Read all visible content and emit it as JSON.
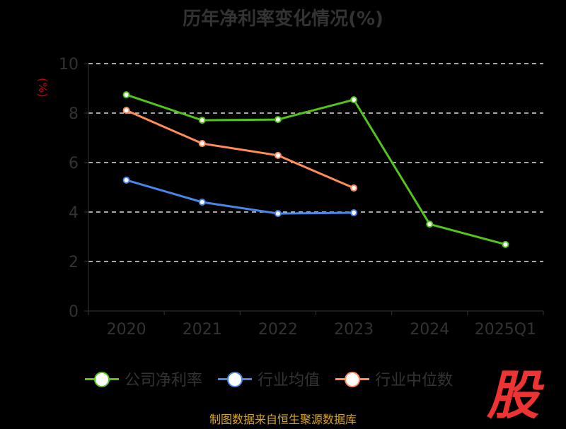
{
  "chart_data": {
    "type": "line",
    "title": "历年净利率变化情况(%)",
    "ylabel": "(%)",
    "categories": [
      "2020",
      "2021",
      "2022",
      "2023",
      "2024",
      "2025Q1"
    ],
    "ylim": [
      0,
      10
    ],
    "yticks": [
      "0",
      "2",
      "4",
      "6",
      "8",
      "10"
    ],
    "grid": true,
    "legend_position": "bottom",
    "series": [
      {
        "name": "公司净利率",
        "color": "#52c41a",
        "values": [
          8.74,
          7.71,
          7.74,
          8.54,
          3.51,
          2.69
        ]
      },
      {
        "name": "行业均值",
        "color": "#4a86e8",
        "values": [
          5.29,
          4.4,
          3.94,
          3.97,
          null,
          null
        ]
      },
      {
        "name": "行业中位数",
        "color": "#ff8c5a",
        "values": [
          8.11,
          6.77,
          6.29,
          4.97,
          null,
          null
        ]
      }
    ]
  },
  "logo": "股",
  "source": "制图数据来自恒生聚源数据库"
}
